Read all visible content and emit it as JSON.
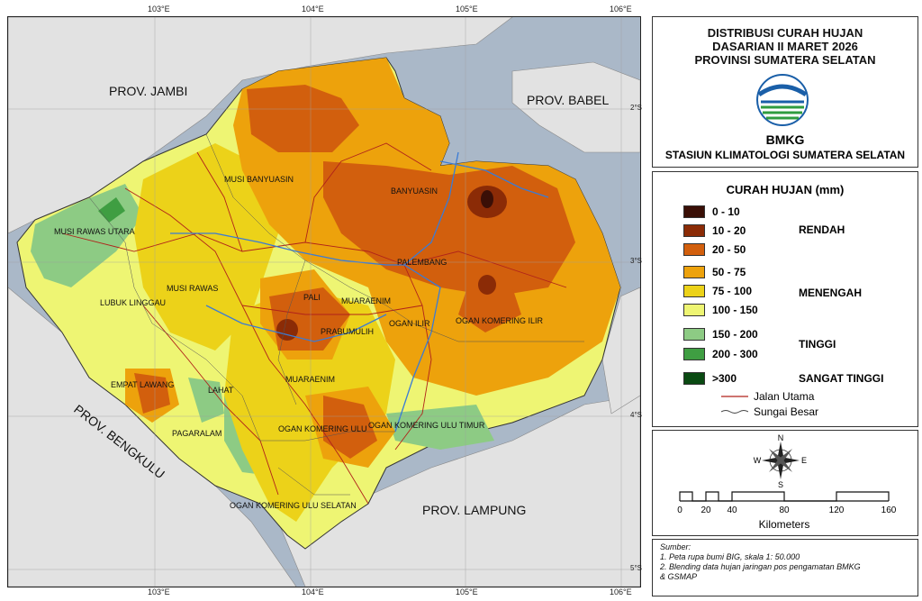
{
  "grid": {
    "top_lon": [
      "103°E",
      "104°E",
      "105°E",
      "106°E"
    ],
    "bottom_lon": [
      "103°E",
      "104°E",
      "105°E",
      "106°E"
    ],
    "right_lat": [
      "2°S",
      "3°S",
      "4°S",
      "5°S"
    ]
  },
  "provinces": {
    "jambi": "PROV. JAMBI",
    "babel": "PROV. BABEL",
    "bengkulu": "PROV. BENGKULU",
    "lampung": "PROV. LAMPUNG"
  },
  "districts": {
    "musi_banyuasin": "MUSI BANYUASIN",
    "banyuasin": "BANYUASIN",
    "musi_rawas_utara": "MUSI RAWAS UTARA",
    "palembang": "PALEMBANG",
    "musi_rawas": "MUSI RAWAS",
    "lubuk_linggau": "LUBUK LINGGAU",
    "pali": "PALI",
    "muaraenim_north": "MUARAENIM",
    "ogan_ilir": "OGAN ILIR",
    "ogan_komering_ilir": "OGAN KOMERING ILIR",
    "prabumulih": "PRABUMULIH",
    "empat_lawang": "EMPAT LAWANG",
    "lahat": "LAHAT",
    "muaraenim_south": "MUARAENIM",
    "pagaralam": "PAGARALAM",
    "oku": "OGAN KOMERING ULU",
    "oku_timur": "OGAN KOMERING ULU TIMUR",
    "oku_selatan": "OGAN KOMERING ULU SELATAN"
  },
  "title": {
    "line1": "DISTRIBUSI CURAH HUJAN",
    "line2": "DASARIAN II MARET 2026",
    "line3": "PROVINSI SUMATERA SELATAN",
    "logo_text": "BMKG",
    "station": "STASIUN KLIMATOLOGI SUMATERA SELATAN"
  },
  "legend": {
    "title": "CURAH HUJAN (mm)",
    "items": [
      {
        "label": "0 - 10",
        "color": "#3a0f06"
      },
      {
        "label": "10 - 20",
        "color": "#8b2b06"
      },
      {
        "label": "20 - 50",
        "color": "#d25f0d"
      },
      {
        "label": "50 - 75",
        "color": "#eda20c"
      },
      {
        "label": "75 - 100",
        "color": "#ecd219"
      },
      {
        "label": "100 - 150",
        "color": "#eef573"
      },
      {
        "label": "150 - 200",
        "color": "#8dcb84"
      },
      {
        "label": "200 - 300",
        "color": "#3f9e42"
      },
      {
        "label": ">300",
        "color": "#0a4a12"
      }
    ],
    "classes": {
      "rendah": "RENDAH",
      "menengah": "MENENGAH",
      "tinggi": "TINGGI",
      "sangat_tinggi": "SANGAT TINGGI"
    },
    "road": "Jalan Utama",
    "river": "Sungai Besar",
    "road_color": "#b0221a",
    "river_color": "#444444"
  },
  "compass": {
    "n": "N",
    "s": "S",
    "e": "E",
    "w": "W"
  },
  "scale": {
    "ticks": [
      "0",
      "20",
      "40",
      "80",
      "120",
      "160"
    ],
    "unit": "Kilometers"
  },
  "source": {
    "header": "Sumber:",
    "line1": "1. Peta rupa bumi BIG, skala 1: 50.000",
    "line2": "2. Blending data hujan jaringan pos pengamatan BMKG",
    "line3": "& GSMAP"
  }
}
